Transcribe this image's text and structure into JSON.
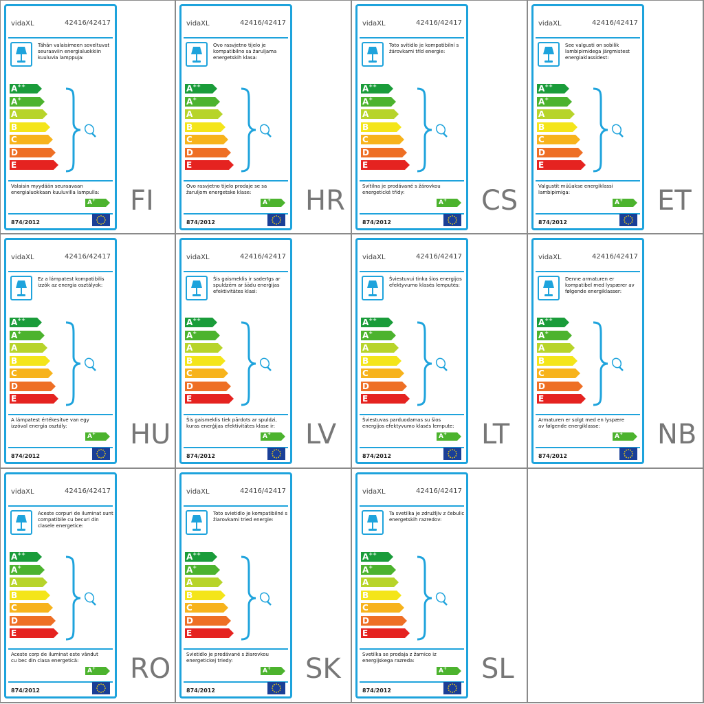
{
  "common": {
    "brand": "vidaXL",
    "model": "42416/42417",
    "regulation": "874/2012",
    "badge_class": "A",
    "badge_sup": "+",
    "classes": [
      {
        "letter": "A",
        "sup": "++",
        "color": "#1a9c3a"
      },
      {
        "letter": "A",
        "sup": "+",
        "color": "#4cb32e"
      },
      {
        "letter": "A",
        "sup": "",
        "color": "#b7d42a"
      },
      {
        "letter": "B",
        "sup": "",
        "color": "#f4e51a"
      },
      {
        "letter": "C",
        "sup": "",
        "color": "#f7b31c"
      },
      {
        "letter": "D",
        "sup": "",
        "color": "#ee6f25"
      },
      {
        "letter": "E",
        "sup": "",
        "color": "#e52320"
      }
    ],
    "accent_color": "#1ea3dc",
    "icons": [
      "lamp-icon",
      "brace-icon",
      "bulb-icon",
      "eu-flag-icon"
    ]
  },
  "labels": [
    {
      "code": "FI",
      "compat": "Tähän valaisimeen soveltuvat seuraaviin energialuokkiin kuuluvia lamppuja:",
      "sale": "Valaisin myydään seuraavaan energialuokkaan kuuluvilla lampulla:"
    },
    {
      "code": "HR",
      "compat": "Ovo rasvjetno tijelo je kompatibilno sa žaruljama energetskih klasa:",
      "sale": "Ovo rasvjetno tijelo prodaje se sa žaruljom energetske klase:"
    },
    {
      "code": "CS",
      "compat": "Toto svítidlo je kompatibilní s žárovkami tříd energie:",
      "sale": "Svítilna je prodávané s žárovkou energetické třídy:"
    },
    {
      "code": "ET",
      "compat": "See valgusti on sobilik lambipirnidega järgmistest energiaklassidest:",
      "sale": "Valgustit müüakse energiklassi lambipirniga:"
    },
    {
      "code": "HU",
      "compat": "Ez a lámpatest kompatibilis izzók az energia osztályok:",
      "sale": "A lámpatest értékesítve van egy izzóval energia osztály:"
    },
    {
      "code": "LV",
      "compat": "Šis gaismeklis ir saderīgs ar spuldzēm ar šādu enerģijas efektivitātes klasi:",
      "sale": "Šis gaismeklis tiek pārdots ar spuldzi, kuras enerģijas efektivitātes klase ir:"
    },
    {
      "code": "LT",
      "compat": "Šviestuvui tinka šios energijos efektyvumo klasės lemputės:",
      "sale": "Šviestuvas parduodamas su šios energijos efektyvumo klasės lempute:"
    },
    {
      "code": "NB",
      "compat": "Denne armaturen er kompatibel med lyspærer av følgende energiklasser:",
      "sale": "Armaturen er solgt med en lyspære av følgende energiklasse:"
    },
    {
      "code": "RO",
      "compat": "Aceste corpuri de iluminat sunt compatibile cu becuri din clasele energetice:",
      "sale": "Aceste corp de iluminat este vândut cu bec din clasa energetică:"
    },
    {
      "code": "SK",
      "compat": "Toto svietidlo je kompatibilné s žiarovkami tried energie:",
      "sale": "Svietidlo je predávané s žiarovkou energetickej triedy:"
    },
    {
      "code": "SL",
      "compat": "Ta svetilka je združljiv z čebulic energetskih razredov:",
      "sale": "Svetilka se prodaja z žarnico iz energijskega razreda:"
    }
  ]
}
